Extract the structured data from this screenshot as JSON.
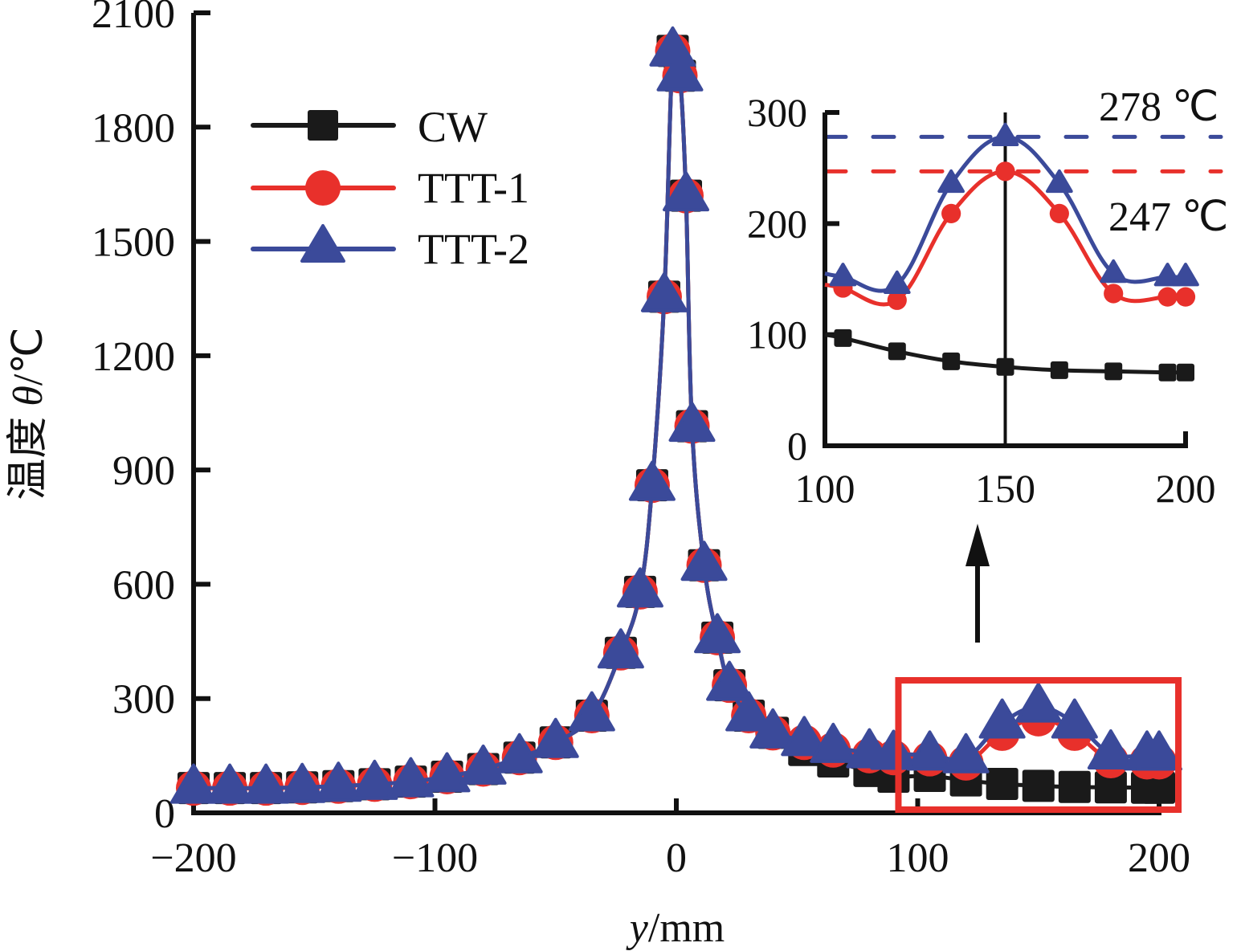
{
  "chart_data": {
    "type": "line",
    "title": "",
    "xlabel": "y/mm",
    "xlabel_italic_part": "y",
    "xlabel_unit_part": "/mm",
    "ylabel": "温度 θ/℃",
    "ylabel_cjk_part": "温度 ",
    "ylabel_symbol_part": "θ",
    "ylabel_unit_part": "/℃",
    "xlim": [
      -200,
      200
    ],
    "ylim": [
      0,
      2100
    ],
    "xticks": [
      -200,
      -100,
      0,
      100,
      200
    ],
    "xtick_labels": [
      "−200",
      "−100",
      "0",
      "100",
      "200"
    ],
    "yticks": [
      0,
      300,
      600,
      900,
      1200,
      1500,
      1800,
      2100
    ],
    "ytick_labels": [
      "0",
      "300",
      "600",
      "900",
      "1200",
      "1500",
      "1800",
      "2100"
    ],
    "grid": false,
    "legend_position": "top-left",
    "series": [
      {
        "name": "CW",
        "color": "#1a1a1a",
        "marker": "square",
        "x": [
          -200,
          -185,
          -170,
          -155,
          -140,
          -125,
          -110,
          -95,
          -80,
          -65,
          -50,
          -35,
          -23,
          -15,
          -10,
          -5,
          -1.5,
          1.5,
          4,
          6.5,
          11.5,
          17,
          22,
          30,
          40,
          53,
          65,
          80,
          90,
          105,
          120,
          135,
          150,
          165,
          180,
          195,
          200
        ],
        "y": [
          65,
          65,
          65,
          67,
          70,
          75,
          82,
          95,
          115,
          145,
          185,
          255,
          420,
          580,
          860,
          1355,
          2000,
          1935,
          1620,
          1015,
          650,
          460,
          335,
          255,
          210,
          165,
          135,
          110,
          95,
          97,
          85,
          76,
          71,
          68,
          67,
          66,
          66
        ]
      },
      {
        "name": "TTT-1",
        "color": "#e8302b",
        "marker": "circle",
        "x": [
          -200,
          -185,
          -170,
          -155,
          -140,
          -125,
          -110,
          -95,
          -80,
          -65,
          -50,
          -35,
          -23,
          -15,
          -10,
          -5,
          -1.5,
          1.5,
          4,
          6.5,
          11.5,
          17,
          22,
          30,
          40,
          53,
          65,
          80,
          90,
          105,
          120,
          135,
          150,
          165,
          180,
          195,
          200
        ],
        "y": [
          65,
          65,
          65,
          67,
          70,
          75,
          82,
          95,
          115,
          145,
          185,
          255,
          420,
          580,
          860,
          1355,
          2000,
          1935,
          1620,
          1015,
          650,
          460,
          335,
          255,
          210,
          185,
          165,
          150,
          145,
          142,
          131,
          209,
          247,
          209,
          137,
          134,
          134
        ]
      },
      {
        "name": "TTT-2",
        "color": "#3b4a9a",
        "marker": "triangle",
        "x": [
          -200,
          -185,
          -170,
          -155,
          -140,
          -125,
          -110,
          -95,
          -80,
          -65,
          -50,
          -35,
          -23,
          -15,
          -10,
          -5,
          -1.5,
          1.5,
          4,
          6.5,
          11.5,
          17,
          22,
          30,
          40,
          53,
          65,
          80,
          90,
          105,
          120,
          135,
          150,
          165,
          180,
          195,
          200
        ],
        "y": [
          65,
          65,
          65,
          67,
          70,
          75,
          82,
          95,
          115,
          145,
          185,
          255,
          420,
          580,
          860,
          1355,
          2000,
          1935,
          1620,
          1015,
          650,
          460,
          335,
          255,
          210,
          190,
          172,
          158,
          154,
          152,
          145,
          236,
          278,
          236,
          155,
          152,
          152
        ]
      }
    ],
    "highlight_box": {
      "x_range": [
        92,
        208
      ],
      "y_range": [
        0,
        300
      ],
      "color": "#e8302b"
    },
    "arrow": {
      "direction": "up",
      "at_x": 125
    },
    "inset": {
      "xlim": [
        100,
        200
      ],
      "ylim": [
        0,
        300
      ],
      "xticks": [
        100,
        150,
        200
      ],
      "xtick_labels": [
        "100",
        "150",
        "200"
      ],
      "yticks": [
        0,
        100,
        200,
        300
      ],
      "ytick_labels": [
        "0",
        "100",
        "200",
        "300"
      ],
      "vline_x": 150,
      "series": [
        {
          "name": "CW",
          "x": [
            100,
            105,
            120,
            135,
            150,
            165,
            180,
            195,
            200
          ],
          "y": [
            100,
            97,
            85,
            76,
            71,
            68,
            67,
            66,
            66
          ]
        },
        {
          "name": "TTT-1",
          "x": [
            100,
            105,
            120,
            135,
            150,
            165,
            180,
            195,
            200
          ],
          "y": [
            145,
            142,
            131,
            209,
            247,
            209,
            137,
            134,
            134
          ]
        },
        {
          "name": "TTT-2",
          "x": [
            100,
            105,
            120,
            135,
            150,
            165,
            180,
            195,
            200
          ],
          "y": [
            155,
            152,
            145,
            236,
            278,
            236,
            155,
            152,
            152
          ]
        }
      ],
      "reference_lines": [
        {
          "value": 278,
          "color": "#3b4a9a",
          "label": "278 ℃",
          "style": "dashed"
        },
        {
          "value": 247,
          "color": "#e8302b",
          "label": "247 ℃",
          "style": "dashed"
        }
      ]
    }
  }
}
